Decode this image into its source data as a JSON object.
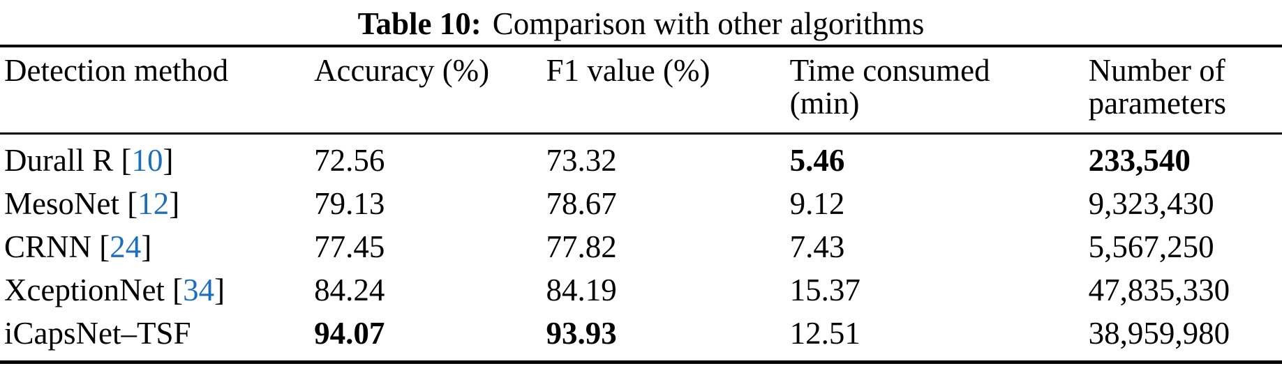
{
  "caption": {
    "label": "Table 10:",
    "text": "Comparison with other algorithms"
  },
  "colors": {
    "citation_link": "#1f6eb8",
    "text": "#000000",
    "rule": "#000000",
    "background": "#ffffff"
  },
  "table": {
    "headers": [
      {
        "line1": "Detection method",
        "line2": ""
      },
      {
        "line1": "Accuracy (%)",
        "line2": ""
      },
      {
        "line1": "F1 value (%)",
        "line2": ""
      },
      {
        "line1": "Time consumed",
        "line2": "(min)"
      },
      {
        "line1": "Number of",
        "line2": "parameters"
      }
    ],
    "column_keys": [
      "accuracy",
      "f1",
      "time",
      "params"
    ],
    "column_cell_names": [
      "accuracy-cell",
      "f1-cell",
      "time-cell",
      "params-cell"
    ],
    "rows": [
      {
        "method": "Durall R",
        "cite": "10",
        "accuracy": "72.56",
        "f1": "73.32",
        "time": "5.46",
        "params": "233,540",
        "bold": [
          "time",
          "params"
        ]
      },
      {
        "method": "MesoNet",
        "cite": "12",
        "accuracy": "79.13",
        "f1": "78.67",
        "time": "9.12",
        "params": "9,323,430",
        "bold": []
      },
      {
        "method": "CRNN",
        "cite": "24",
        "accuracy": "77.45",
        "f1": "77.82",
        "time": "7.43",
        "params": "5,567,250",
        "bold": []
      },
      {
        "method": "XceptionNet",
        "cite": "34",
        "accuracy": "84.24",
        "f1": "84.19",
        "time": "15.37",
        "params": "47,835,330",
        "bold": []
      },
      {
        "method": "iCapsNet–TSF",
        "cite": null,
        "accuracy": "94.07",
        "f1": "93.93",
        "time": "12.51",
        "params": "38,959,980",
        "bold": [
          "accuracy",
          "f1"
        ]
      }
    ]
  }
}
